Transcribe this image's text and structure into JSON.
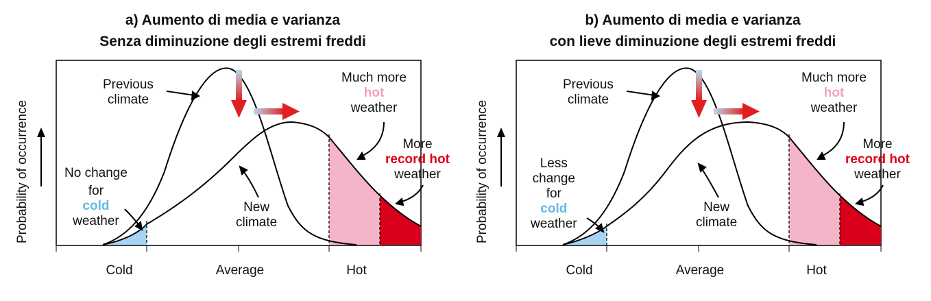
{
  "panels": [
    {
      "title_line1": "a) Aumento di media e varianza",
      "title_line2": "Senza diminuzione degli estremi freddi",
      "ylabel": "Probability of occurrence",
      "ticks": [
        "Cold",
        "Average",
        "Hot"
      ],
      "previous_climate": [
        "Previous",
        "climate"
      ],
      "new_climate": [
        "New",
        "climate"
      ],
      "hot_label": [
        "Much more",
        "hot",
        "weather"
      ],
      "record_label": [
        "More",
        "record hot",
        "weather"
      ],
      "cold_label": [
        "No change",
        "for",
        "cold",
        "weather"
      ]
    },
    {
      "title_line1": "b) Aumento di media e varianza",
      "title_line2": "con lieve diminuzione degli estremi freddi",
      "ylabel": "Probability of occurrence",
      "ticks": [
        "Cold",
        "Average",
        "Hot"
      ],
      "previous_climate": [
        "Previous",
        "climate"
      ],
      "new_climate": [
        "New",
        "climate"
      ],
      "hot_label": [
        "Much more",
        "hot",
        "weather"
      ],
      "record_label": [
        "More",
        "record hot",
        "weather"
      ],
      "cold_label": [
        "Less",
        "change",
        "for",
        "cold",
        "weather"
      ]
    }
  ],
  "colors": {
    "cold_fill": "#a6d4f2",
    "hot_fill": "#f5b5c8",
    "record_fill": "#d9001b",
    "arrow_red": "#e02020",
    "arrow_blue": "#b8d8ee"
  }
}
